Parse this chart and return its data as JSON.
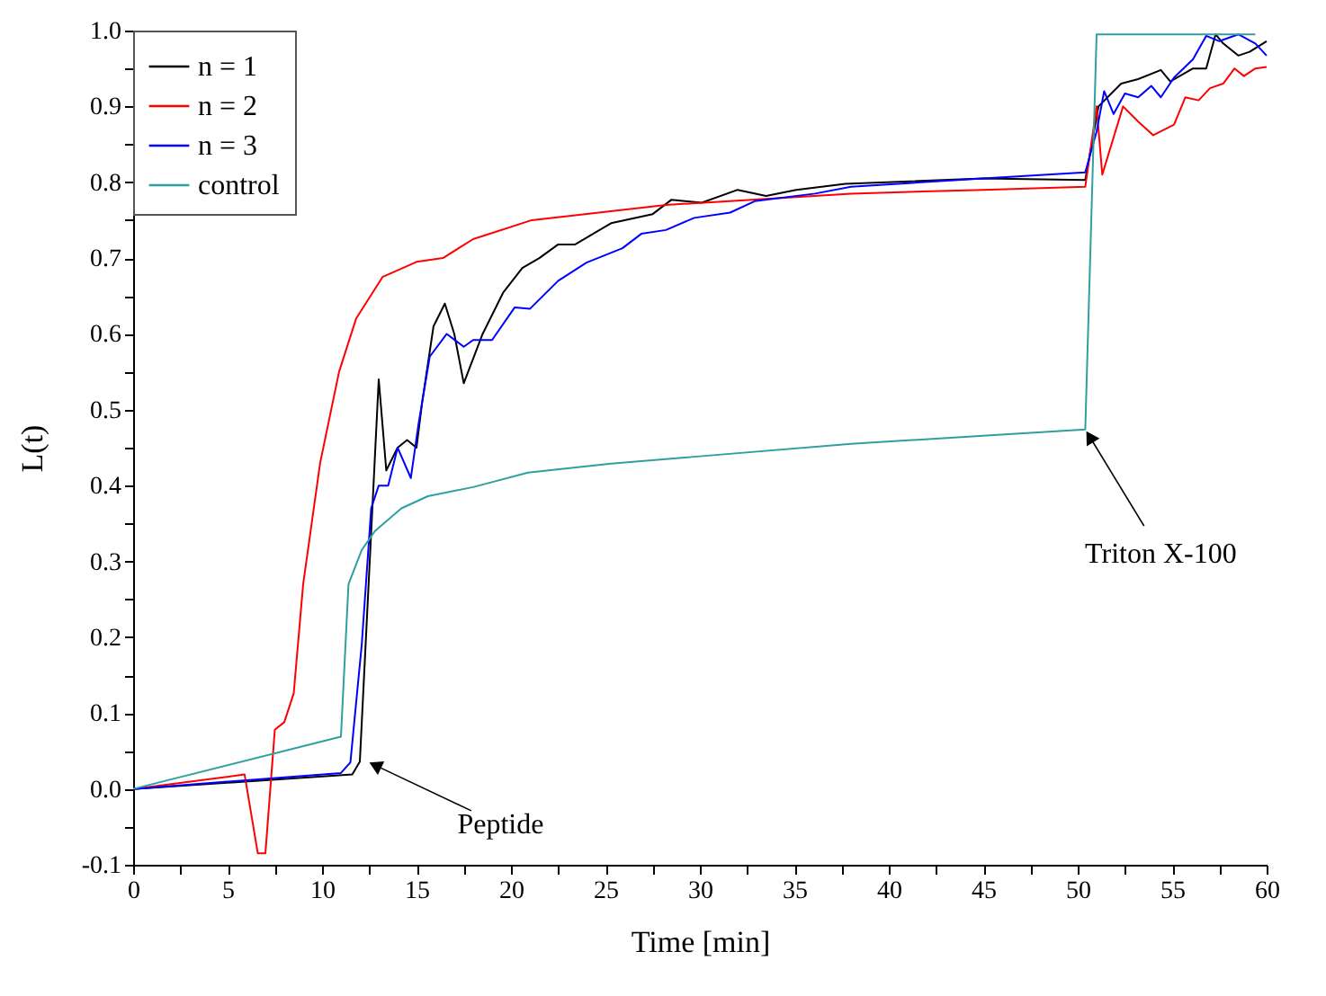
{
  "chart_data": {
    "type": "line",
    "xlabel": "Time [min]",
    "ylabel": "L(t)",
    "xlim": [
      0,
      60
    ],
    "ylim": [
      -0.1,
      1.0
    ],
    "xticks": [
      0,
      {
        "value": 2.5,
        "label": null
      },
      5,
      {
        "value": 7.5,
        "label": null
      },
      10,
      {
        "value": 12.5,
        "label": null
      },
      15,
      {
        "value": 17.5,
        "label": null
      },
      20,
      {
        "value": 22.5,
        "label": null
      },
      25,
      {
        "value": 27.5,
        "label": null
      },
      30,
      {
        "value": 32.5,
        "label": null
      },
      35,
      {
        "value": 37.5,
        "label": null
      },
      40,
      {
        "value": 42.5,
        "label": null
      },
      45,
      {
        "value": 47.5,
        "label": null
      },
      50,
      {
        "value": 52.5,
        "label": null
      },
      55,
      {
        "value": 57.5,
        "label": null
      },
      60
    ],
    "yticks": [
      {
        "value": -0.1,
        "label": "-0.1"
      },
      {
        "value": -0.05,
        "label": null
      },
      {
        "value": 0,
        "label": "0.0"
      },
      {
        "value": 0.05,
        "label": null
      },
      {
        "value": 0.1,
        "label": "0.1"
      },
      {
        "value": 0.15,
        "label": null
      },
      {
        "value": 0.2,
        "label": "0.2"
      },
      {
        "value": 0.25,
        "label": null
      },
      {
        "value": 0.3,
        "label": "0.3"
      },
      {
        "value": 0.35,
        "label": null
      },
      {
        "value": 0.4,
        "label": "0.4"
      },
      {
        "value": 0.45,
        "label": null
      },
      {
        "value": 0.5,
        "label": "0.5"
      },
      {
        "value": 0.55,
        "label": null
      },
      {
        "value": 0.6,
        "label": "0.6"
      },
      {
        "value": 0.65,
        "label": null
      },
      {
        "value": 0.7,
        "label": "0.7"
      },
      {
        "value": 0.75,
        "label": null
      },
      {
        "value": 0.8,
        "label": "0.8"
      },
      {
        "value": 0.85,
        "label": null
      },
      {
        "value": 0.9,
        "label": "0.9"
      },
      {
        "value": 0.95,
        "label": null
      },
      {
        "value": 1.0,
        "label": "1.0"
      }
    ],
    "grid": false,
    "legend": "top left",
    "marker": "none",
    "line_style": "solid",
    "series": [
      {
        "name": "n = 1",
        "color": "#000000",
        "x": [
          0,
          11.6,
          12,
          13,
          13.4,
          14,
          14.5,
          15,
          15.3,
          15.9,
          16.5,
          17,
          17.5,
          18.5,
          19.6,
          20.6,
          21.5,
          22.5,
          23.4,
          25.3,
          27.5,
          28.5,
          30.1,
          32,
          33.5,
          35.1,
          37.7,
          45,
          50.4,
          51.1,
          52.3,
          53.2,
          54.4,
          54.9,
          56.1,
          56.8,
          57.3,
          57.7,
          58.5,
          59.1,
          60
        ],
        "values": [
          0,
          0.019,
          0.036,
          0.54,
          0.42,
          0.45,
          0.46,
          0.45,
          0.51,
          0.61,
          0.64,
          0.6,
          0.535,
          0.6,
          0.655,
          0.687,
          0.7,
          0.718,
          0.718,
          0.746,
          0.758,
          0.777,
          0.773,
          0.79,
          0.782,
          0.79,
          0.798,
          0.805,
          0.803,
          0.9,
          0.93,
          0.936,
          0.948,
          0.933,
          0.95,
          0.95,
          0.995,
          0.983,
          0.967,
          0.972,
          0.986
        ]
      },
      {
        "name": "n = 2",
        "color": "#ff0000",
        "x": [
          0,
          5.9,
          6.6,
          7.0,
          7.5,
          8,
          8.5,
          9,
          9.9,
          10.9,
          11.8,
          13.2,
          15,
          16.4,
          18,
          21.1,
          28.2,
          38,
          45,
          50.4,
          51,
          51.3,
          52.4,
          53.2,
          54,
          55.1,
          55.7,
          56.4,
          57,
          57.7,
          58.3,
          58.8,
          59.4,
          60
        ],
        "values": [
          0,
          0.019,
          -0.085,
          -0.085,
          0.078,
          0.088,
          0.126,
          0.27,
          0.43,
          0.55,
          0.62,
          0.675,
          0.695,
          0.7,
          0.725,
          0.75,
          0.77,
          0.785,
          0.79,
          0.794,
          0.9,
          0.81,
          0.9,
          0.88,
          0.862,
          0.876,
          0.912,
          0.908,
          0.924,
          0.93,
          0.95,
          0.94,
          0.95,
          0.952
        ]
      },
      {
        "name": "n = 3",
        "color": "#0000ff",
        "x": [
          0,
          11,
          11.5,
          12.1,
          12.6,
          13,
          13.5,
          14,
          14.7,
          15.1,
          15.7,
          16.6,
          17.5,
          18,
          19,
          20.2,
          21,
          22.5,
          24,
          25.9,
          26.9,
          28.2,
          29.7,
          31.6,
          32.9,
          36.1,
          38,
          45,
          50.4,
          51,
          51.4,
          51.9,
          52.5,
          53.2,
          53.9,
          54.4,
          55.1,
          56.1,
          56.8,
          57.5,
          58.5,
          59.4,
          60
        ],
        "values": [
          0,
          0.021,
          0.035,
          0.19,
          0.37,
          0.4,
          0.4,
          0.45,
          0.41,
          0.48,
          0.57,
          0.6,
          0.583,
          0.592,
          0.592,
          0.635,
          0.633,
          0.67,
          0.694,
          0.713,
          0.732,
          0.737,
          0.753,
          0.76,
          0.775,
          0.785,
          0.794,
          0.805,
          0.813,
          0.867,
          0.92,
          0.89,
          0.917,
          0.912,
          0.927,
          0.912,
          0.938,
          0.962,
          0.993,
          0.986,
          0.995,
          0.983,
          0.967
        ]
      },
      {
        "name": "control",
        "color": "#2f9f9f",
        "x": [
          0,
          11,
          11.4,
          12.1,
          12.8,
          14.2,
          15.6,
          18,
          20.9,
          25.3,
          29.7,
          38,
          50.4,
          51,
          59.4
        ],
        "values": [
          0,
          0.069,
          0.27,
          0.315,
          0.34,
          0.37,
          0.386,
          0.398,
          0.417,
          0.429,
          0.438,
          0.455,
          0.474,
          0.995,
          0.995
        ]
      }
    ],
    "annotations": [
      {
        "text": "Peptide",
        "x": 12.4,
        "y": 0.036
      },
      {
        "text": "Triton X-100",
        "x": 50.4,
        "y": 0.474
      }
    ]
  }
}
